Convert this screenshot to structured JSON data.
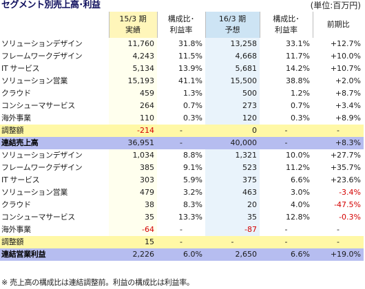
{
  "title": "セグメント別売上高･利益",
  "unit": "(単位:百万円)",
  "headers": [
    {
      "line1": "15/3 期",
      "line2": "実績"
    },
    {
      "line1": "構成比･",
      "line2": "利益率"
    },
    {
      "line1": "16/3 期",
      "line2": "予想"
    },
    {
      "line1": "構成比･",
      "line2": "利益率"
    },
    {
      "line1": "前期比",
      "line2": ""
    }
  ],
  "rows": [
    {
      "name": "ソリューションデザイン",
      "c1": "11,760",
      "c2": "31.8%",
      "c3": "13,258",
      "c4": "33.1%",
      "c5": "+12.7%"
    },
    {
      "name": "フレームワークデザイン",
      "c1": "4,243",
      "c2": "11.5%",
      "c3": "4,668",
      "c4": "11.7%",
      "c5": "+10.0%"
    },
    {
      "name": "IT サービス",
      "c1": "5,134",
      "c2": "13.9%",
      "c3": "5,681",
      "c4": "14.2%",
      "c5": "+10.7%"
    },
    {
      "name": "ソリューション営業",
      "c1": "15,193",
      "c2": "41.1%",
      "c3": "15,500",
      "c4": "38.8%",
      "c5": "+2.0%"
    },
    {
      "name": "クラウド",
      "c1": "459",
      "c2": "1.3%",
      "c3": "500",
      "c4": "1.2%",
      "c5": "+8.7%"
    },
    {
      "name": "コンシューマサービス",
      "c1": "264",
      "c2": "0.7%",
      "c3": "273",
      "c4": "0.7%",
      "c5": "+3.4%"
    },
    {
      "name": "海外事業",
      "c1": "110",
      "c2": "0.3%",
      "c3": "120",
      "c4": "0.3%",
      "c5": "+8.9%"
    },
    {
      "name": "調整額",
      "c1": "-214",
      "c2": "-",
      "c3": "0",
      "c4": "-",
      "c5": "-",
      "kind": "adj",
      "neg1": true
    },
    {
      "name": "連結売上高",
      "c1": "36,951",
      "c2": "-",
      "c3": "40,000",
      "c4": "-",
      "c5": "+8.3%",
      "kind": "tot"
    },
    {
      "name": "ソリューションデザイン",
      "c1": "1,034",
      "c2": "8.8%",
      "c3": "1,321",
      "c4": "10.0%",
      "c5": "+27.7%"
    },
    {
      "name": "フレームワークデザイン",
      "c1": "385",
      "c2": "9.1%",
      "c3": "523",
      "c4": "11.2%",
      "c5": "+35.7%"
    },
    {
      "name": "IT サービス",
      "c1": "303",
      "c2": "5.9%",
      "c3": "375",
      "c4": "6.6%",
      "c5": "+23.6%"
    },
    {
      "name": "ソリューション営業",
      "c1": "479",
      "c2": "3.2%",
      "c3": "463",
      "c4": "3.0%",
      "c5": "-3.4%",
      "neg5": true
    },
    {
      "name": "クラウド",
      "c1": "38",
      "c2": "8.3%",
      "c3": "20",
      "c4": "4.0%",
      "c5": "-47.5%",
      "neg5": true
    },
    {
      "name": "コンシューマサービス",
      "c1": "35",
      "c2": "13.3%",
      "c3": "35",
      "c4": "12.8%",
      "c5": "-0.3%",
      "neg5": true
    },
    {
      "name": "海外事業",
      "c1": "-64",
      "c2": "-",
      "c3": "-87",
      "c4": "-",
      "c5": "-",
      "neg1": true,
      "neg3": true
    },
    {
      "name": "調整額",
      "c1": "15",
      "c2": "-",
      "c3": "-",
      "c4": "-",
      "c5": "-",
      "kind": "adj"
    },
    {
      "name": "連結営業利益",
      "c1": "2,226",
      "c2": "6.0%",
      "c3": "2,650",
      "c4": "6.6%",
      "c5": "+19.0%",
      "kind": "tot"
    }
  ],
  "note": "※ 売上高の構成比は連結調整前。利益の構成比は利益率。",
  "colors": {
    "title": "#0d0d5c",
    "negative": "#d40000",
    "adjustment_row": "#fff8a6",
    "total_row": "#b6bdf0",
    "header_15": "#fff6ba",
    "header_16": "#cde4f4"
  }
}
